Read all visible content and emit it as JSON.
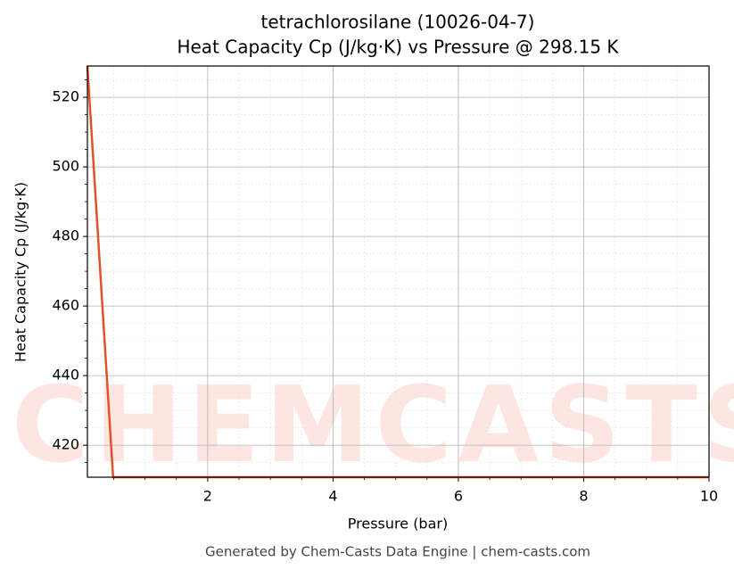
{
  "chart_data": {
    "type": "line",
    "title": "tetrachlorosilane (10026-04-7)",
    "subtitle": "Heat Capacity Cp (J/kg·K) vs Pressure @ 298.15 K",
    "x_label": "Pressure (bar)",
    "y_label": "Heat Capacity Cp (J/kg·K)",
    "footer": "Generated by Chem-Casts Data Engine | chem-casts.com",
    "watermark": "CHEMCASTS",
    "x": [
      0.08,
      0.49,
      10
    ],
    "series": [
      {
        "name": "Cp",
        "color": "#e0522a",
        "values": [
          529,
          410.8,
          410.8
        ]
      }
    ],
    "xlim": [
      0.08,
      10
    ],
    "ylim": [
      410.8,
      529
    ],
    "xticks": [
      2,
      4,
      6,
      8,
      10
    ],
    "yticks": [
      420,
      440,
      460,
      480,
      500,
      520
    ],
    "grid": true,
    "minor_grid": true
  }
}
